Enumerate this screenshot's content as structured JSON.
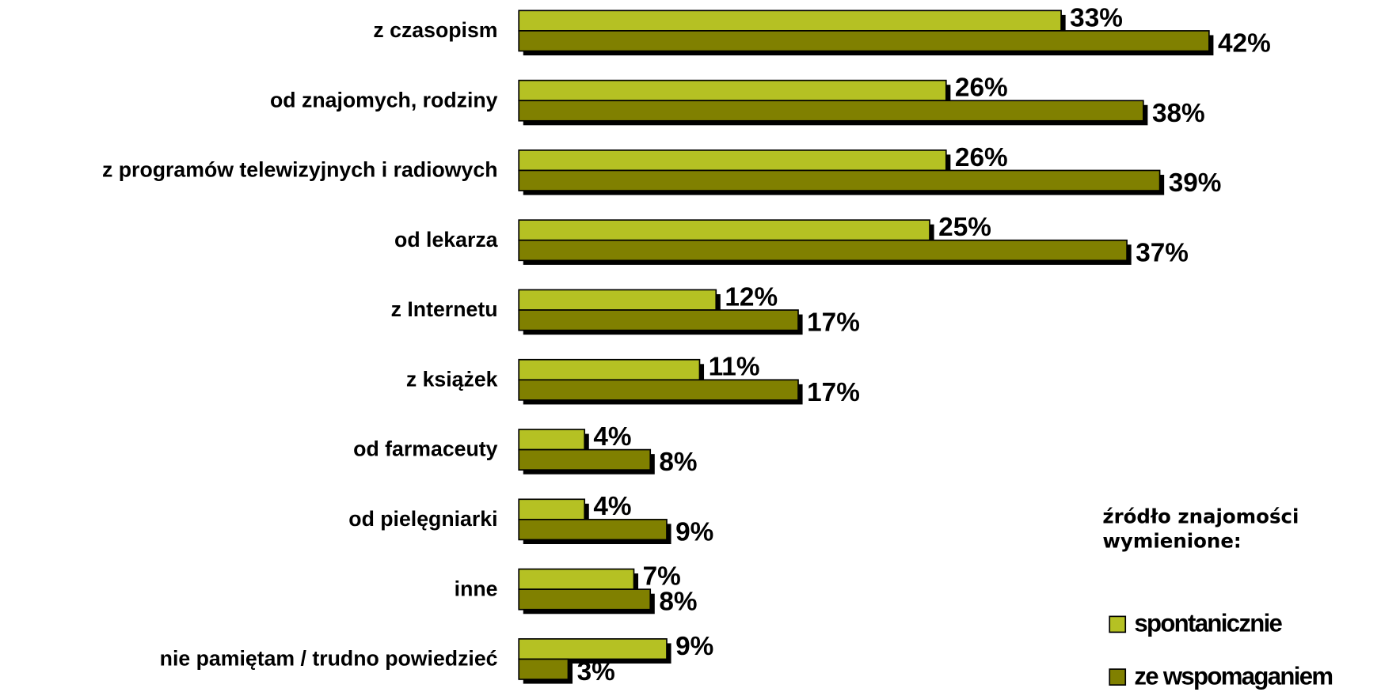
{
  "chart_data": {
    "type": "hbar",
    "legend_title": "źródło znajomości wymienione:",
    "legend_position": "lower right",
    "categories": [
      "z czasopism",
      "od znajomych, rodziny",
      "z programów telewizyjnych i radiowych",
      "od lekarza",
      "z Internetu",
      "z książek",
      "od farmaceuty",
      "od pielęgniarki",
      "inne",
      "nie pamiętam / trudno powiedzieć"
    ],
    "series": [
      {
        "name": "spontanicznie",
        "color": "#b5c123",
        "values": [
          33,
          26,
          26,
          25,
          12,
          11,
          4,
          4,
          7,
          9
        ],
        "value_labels": [
          "33%",
          "26%",
          "26%",
          "25%",
          "12%",
          "11%",
          "4%",
          "4%",
          "7%",
          "9%"
        ]
      },
      {
        "name": "ze wspomaganiem",
        "color": "#808000",
        "values": [
          42,
          38,
          39,
          37,
          17,
          17,
          8,
          9,
          8,
          3
        ],
        "value_labels": [
          "42%",
          "38%",
          "39%",
          "37%",
          "17%",
          "17%",
          "8%",
          "9%",
          "8%",
          "3%"
        ]
      }
    ]
  }
}
